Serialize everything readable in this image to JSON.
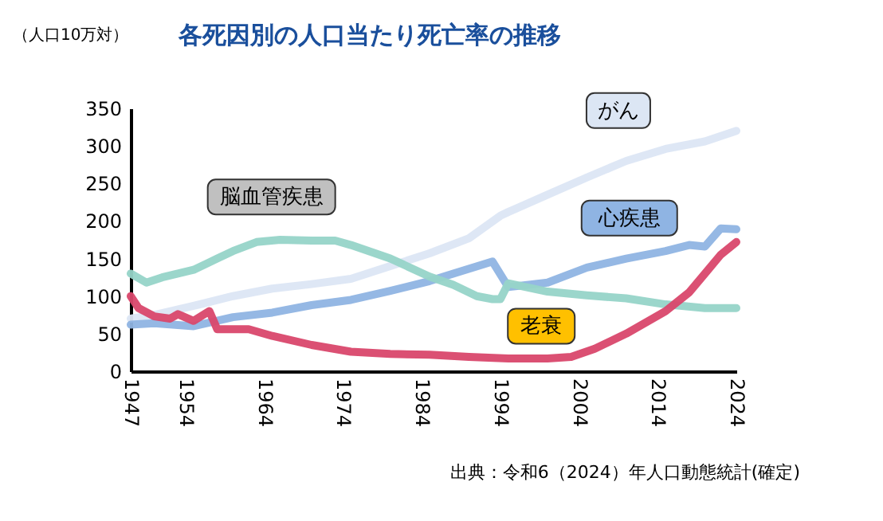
{
  "chart_data": {
    "type": "line",
    "title": "各死因別の人口当たり死亡率の推移",
    "ylabel": "（人口10万対）",
    "annotations": [
      "出典：令和6（2024）年人口動態統計(確定)"
    ],
    "xlim": [
      1947,
      2024
    ],
    "xticks": [
      1947,
      1954,
      1964,
      1974,
      1984,
      1994,
      2004,
      2014,
      2024
    ],
    "ylim": [
      0,
      350
    ],
    "yticks": [
      0,
      50,
      100,
      150,
      200,
      250,
      300,
      350
    ],
    "series": [
      {
        "name": "がん",
        "color": "#dce6f4",
        "x": [
          1947,
          1950,
          1955,
          1960,
          1965,
          1970,
          1975,
          1980,
          1985,
          1990,
          1994,
          1995,
          2000,
          2005,
          2010,
          2015,
          2020,
          2024
        ],
        "values": [
          70,
          75,
          87,
          100,
          110,
          116,
          123,
          140,
          157,
          177,
          207,
          212,
          235,
          258,
          280,
          296,
          306,
          320
        ]
      },
      {
        "name": "心疾患",
        "color": "#8fb4e3",
        "x": [
          1947,
          1950,
          1955,
          1960,
          1965,
          1970,
          1975,
          1980,
          1985,
          1988,
          1993,
          1995,
          2000,
          2005,
          2010,
          2015,
          2018,
          2020,
          2022,
          2024
        ],
        "values": [
          62,
          64,
          60,
          72,
          78,
          88,
          95,
          107,
          120,
          130,
          146,
          112,
          118,
          138,
          150,
          160,
          168,
          166,
          190,
          189
        ]
      },
      {
        "name": "脳血管疾患",
        "color": "#96d4c8",
        "x": [
          1947,
          1949,
          1951,
          1955,
          1958,
          1960,
          1963,
          1966,
          1970,
          1973,
          1975,
          1980,
          1985,
          1988,
          1991,
          1993,
          1994,
          1995,
          2000,
          2005,
          2010,
          2015,
          2020,
          2024
        ],
        "values": [
          130,
          118,
          125,
          135,
          150,
          160,
          172,
          175,
          174,
          174,
          168,
          150,
          126,
          115,
          100,
          96,
          96,
          117,
          106,
          101,
          97,
          89,
          84,
          84
        ]
      },
      {
        "name": "老衰",
        "color": "#d9476b",
        "x": [
          1947,
          1948,
          1950,
          1952,
          1953,
          1955,
          1957,
          1958,
          1962,
          1965,
          1970,
          1975,
          1980,
          1985,
          1990,
          1995,
          2000,
          2003,
          2006,
          2010,
          2015,
          2018,
          2020,
          2022,
          2024
        ],
        "values": [
          100,
          84,
          73,
          70,
          76,
          67,
          80,
          56,
          56,
          47,
          35,
          26,
          23,
          22,
          19,
          17,
          17,
          19,
          30,
          50,
          80,
          105,
          130,
          155,
          172
        ]
      }
    ]
  }
}
